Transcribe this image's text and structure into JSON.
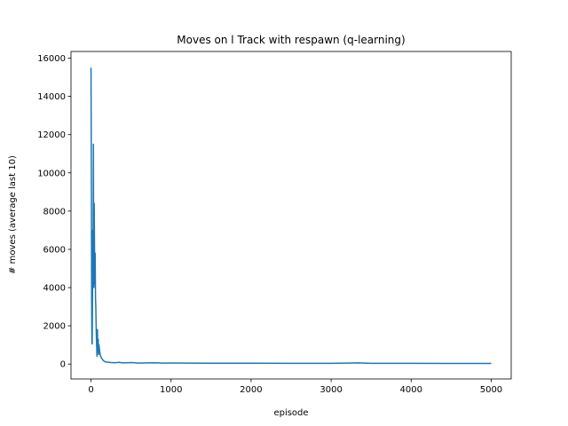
{
  "chart_data": {
    "type": "line",
    "title": "Moves on l Track with respawn (q-learning)",
    "xlabel": "episode",
    "ylabel": "# moves (average last 10)",
    "xlim": [
      -250,
      5250
    ],
    "ylim": [
      -780,
      16350
    ],
    "xticks": [
      0,
      1000,
      2000,
      3000,
      4000,
      5000
    ],
    "yticks": [
      0,
      2000,
      4000,
      6000,
      8000,
      10000,
      12000,
      14000,
      16000
    ],
    "grid": false,
    "series": [
      {
        "color": "#1f77b4",
        "points": [
          [
            0,
            15500
          ],
          [
            5,
            9000
          ],
          [
            8,
            3500
          ],
          [
            10,
            2000
          ],
          [
            12,
            1100
          ],
          [
            15,
            1050
          ],
          [
            18,
            3000
          ],
          [
            22,
            7000
          ],
          [
            26,
            5000
          ],
          [
            30,
            11500
          ],
          [
            33,
            6000
          ],
          [
            36,
            4000
          ],
          [
            40,
            8400
          ],
          [
            44,
            6000
          ],
          [
            48,
            4200
          ],
          [
            52,
            5800
          ],
          [
            56,
            3500
          ],
          [
            60,
            3000
          ],
          [
            65,
            1800
          ],
          [
            70,
            1000
          ],
          [
            75,
            400
          ],
          [
            80,
            1800
          ],
          [
            85,
            600
          ],
          [
            90,
            1300
          ],
          [
            95,
            500
          ],
          [
            100,
            1000
          ],
          [
            110,
            600
          ],
          [
            120,
            400
          ],
          [
            135,
            300
          ],
          [
            150,
            200
          ],
          [
            170,
            130
          ],
          [
            200,
            100
          ],
          [
            250,
            80
          ],
          [
            300,
            70
          ],
          [
            350,
            90
          ],
          [
            400,
            60
          ],
          [
            500,
            80
          ],
          [
            600,
            50
          ],
          [
            700,
            60
          ],
          [
            800,
            70
          ],
          [
            900,
            50
          ],
          [
            1000,
            55
          ],
          [
            1200,
            50
          ],
          [
            1500,
            45
          ],
          [
            2000,
            42
          ],
          [
            2500,
            40
          ],
          [
            3000,
            38
          ],
          [
            3350,
            60
          ],
          [
            3500,
            38
          ],
          [
            4000,
            36
          ],
          [
            4500,
            35
          ],
          [
            5000,
            35
          ]
        ]
      }
    ]
  }
}
